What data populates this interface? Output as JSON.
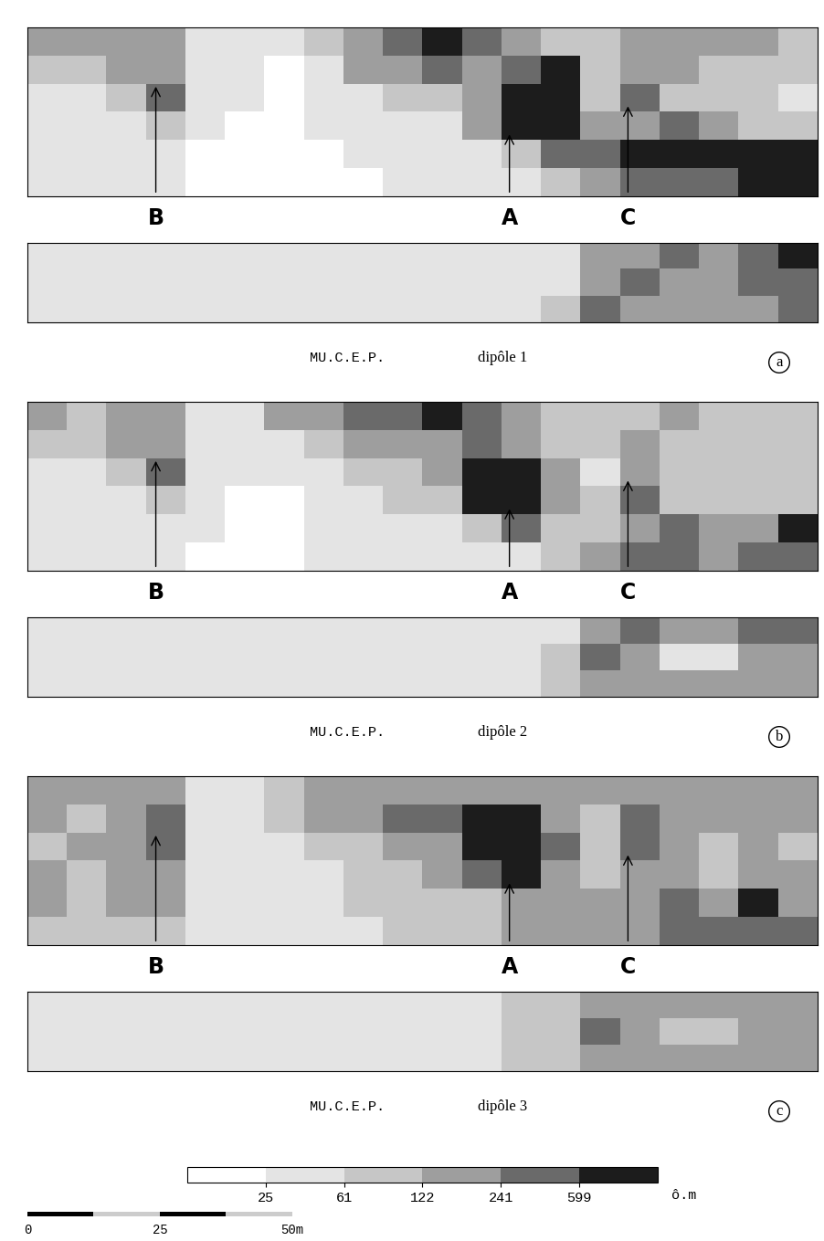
{
  "chart_data": {
    "type": "heatmap",
    "colorbar": {
      "range": [
        10,
        1000
      ],
      "ticks": [
        25,
        61,
        122,
        241,
        599
      ],
      "unit": "ô.m",
      "colors": [
        "#ffffff",
        "#e4e4e4",
        "#c6c6c6",
        "#9e9e9e",
        "#6a6a6a",
        "#1c1c1c"
      ]
    },
    "scale_bar": {
      "ticks": [
        0,
        25,
        50
      ],
      "labels": [
        "0",
        "25",
        "50m"
      ]
    },
    "tick_labels": false,
    "panels": [
      {
        "method": "MU.C.E.P.",
        "label": "dipôle 1",
        "letter": "a",
        "markers": [
          {
            "label": "B",
            "x": 3.25,
            "y": 2.1
          },
          {
            "label": "A",
            "x": 12.2,
            "y": 3.8
          },
          {
            "label": "C",
            "x": 15.2,
            "y": 2.8
          }
        ],
        "upper_cells": [
          [
            150,
            150,
            180,
            150,
            60,
            40,
            30,
            100,
            180,
            250,
            700,
            300,
            200,
            90,
            80,
            180,
            200,
            150,
            150,
            120
          ],
          [
            80,
            70,
            150,
            200,
            50,
            30,
            20,
            60,
            150,
            200,
            250,
            180,
            400,
            700,
            80,
            200,
            150,
            120,
            100,
            90
          ],
          [
            60,
            50,
            90,
            250,
            40,
            25,
            20,
            40,
            60,
            80,
            120,
            200,
            800,
            900,
            90,
            250,
            100,
            80,
            70,
            60
          ],
          [
            40,
            40,
            50,
            80,
            30,
            15,
            15,
            30,
            40,
            50,
            60,
            150,
            700,
            800,
            200,
            200,
            300,
            150,
            100,
            80
          ],
          [
            40,
            40,
            40,
            40,
            20,
            10,
            15,
            20,
            30,
            40,
            50,
            60,
            120,
            250,
            500,
            700,
            600,
            700,
            800,
            700
          ],
          [
            30,
            30,
            30,
            30,
            20,
            10,
            15,
            20,
            20,
            30,
            40,
            40,
            60,
            100,
            200,
            250,
            250,
            300,
            700,
            800
          ]
        ],
        "lower_cells": [
          [
            40,
            50,
            40,
            40,
            30,
            30,
            40,
            40,
            50,
            50,
            40,
            40,
            50,
            60,
            150,
            200,
            250,
            150,
            300,
            700
          ],
          [
            40,
            40,
            40,
            30,
            30,
            30,
            30,
            40,
            40,
            40,
            30,
            40,
            40,
            60,
            200,
            250,
            200,
            150,
            250,
            300
          ],
          [
            30,
            30,
            30,
            30,
            30,
            30,
            30,
            30,
            30,
            40,
            30,
            30,
            40,
            80,
            250,
            200,
            150,
            150,
            200,
            250
          ]
        ]
      },
      {
        "method": "MU.C.E.P.",
        "label": "dipôle 2",
        "letter": "b",
        "markers": [
          {
            "label": "B",
            "x": 3.25,
            "y": 2.1
          },
          {
            "label": "A",
            "x": 12.2,
            "y": 3.8
          },
          {
            "label": "C",
            "x": 15.2,
            "y": 2.8
          }
        ],
        "upper_cells": [
          [
            150,
            120,
            150,
            200,
            40,
            40,
            150,
            200,
            250,
            300,
            600,
            300,
            150,
            120,
            100,
            120,
            150,
            100,
            120,
            100
          ],
          [
            80,
            70,
            130,
            220,
            40,
            30,
            60,
            100,
            200,
            200,
            200,
            250,
            150,
            100,
            80,
            150,
            80,
            80,
            100,
            80
          ],
          [
            60,
            60,
            100,
            250,
            30,
            25,
            30,
            60,
            80,
            100,
            200,
            700,
            900,
            200,
            60,
            200,
            80,
            70,
            80,
            70
          ],
          [
            50,
            50,
            60,
            100,
            30,
            20,
            20,
            40,
            60,
            80,
            100,
            600,
            800,
            150,
            70,
            250,
            100,
            80,
            100,
            80
          ],
          [
            40,
            40,
            50,
            60,
            25,
            20,
            20,
            30,
            40,
            50,
            60,
            80,
            250,
            100,
            120,
            200,
            500,
            150,
            150,
            600
          ],
          [
            40,
            40,
            40,
            40,
            20,
            20,
            20,
            25,
            30,
            40,
            50,
            50,
            60,
            80,
            150,
            250,
            300,
            200,
            250,
            300
          ]
        ],
        "lower_cells": [
          [
            40,
            40,
            40,
            40,
            40,
            40,
            40,
            40,
            50,
            50,
            40,
            40,
            50,
            60,
            150,
            250,
            200,
            150,
            250,
            300
          ],
          [
            40,
            40,
            30,
            30,
            30,
            30,
            30,
            40,
            40,
            40,
            30,
            40,
            40,
            80,
            250,
            150,
            60,
            60,
            150,
            200
          ],
          [
            30,
            30,
            30,
            30,
            30,
            30,
            30,
            30,
            30,
            40,
            30,
            30,
            40,
            70,
            200,
            150,
            150,
            150,
            200,
            150
          ]
        ]
      },
      {
        "method": "MU.C.E.P.",
        "label": "dipôle 3",
        "letter": "c",
        "markers": [
          {
            "label": "B",
            "x": 3.25,
            "y": 2.1
          },
          {
            "label": "A",
            "x": 12.2,
            "y": 3.8
          },
          {
            "label": "C",
            "x": 15.2,
            "y": 2.8
          }
        ],
        "upper_cells": [
          [
            150,
            200,
            150,
            150,
            60,
            60,
            100,
            200,
            150,
            150,
            200,
            200,
            150,
            130,
            150,
            200,
            150,
            130,
            150,
            150
          ],
          [
            130,
            100,
            150,
            250,
            60,
            50,
            70,
            150,
            200,
            250,
            250,
            700,
            700,
            200,
            100,
            250,
            150,
            130,
            150,
            130
          ],
          [
            120,
            150,
            200,
            300,
            50,
            40,
            50,
            80,
            120,
            150,
            200,
            800,
            900,
            250,
            80,
            300,
            150,
            120,
            130,
            120
          ],
          [
            130,
            120,
            150,
            200,
            50,
            40,
            50,
            60,
            80,
            100,
            150,
            300,
            700,
            150,
            100,
            200,
            150,
            120,
            150,
            130
          ],
          [
            130,
            100,
            130,
            150,
            50,
            40,
            50,
            60,
            70,
            80,
            100,
            120,
            200,
            150,
            130,
            180,
            400,
            150,
            600,
            200
          ],
          [
            120,
            100,
            100,
            100,
            50,
            40,
            50,
            60,
            60,
            70,
            80,
            100,
            130,
            150,
            150,
            200,
            300,
            250,
            300,
            300
          ]
        ],
        "lower_cells": [
          [
            50,
            50,
            50,
            50,
            40,
            40,
            50,
            50,
            50,
            60,
            50,
            50,
            70,
            100,
            150,
            200,
            200,
            150,
            150,
            200
          ],
          [
            50,
            50,
            50,
            40,
            40,
            40,
            40,
            50,
            50,
            50,
            50,
            60,
            80,
            100,
            250,
            150,
            100,
            100,
            150,
            200
          ],
          [
            40,
            40,
            40,
            40,
            40,
            40,
            40,
            40,
            40,
            50,
            50,
            60,
            80,
            100,
            200,
            150,
            150,
            150,
            150,
            150
          ]
        ]
      }
    ]
  }
}
